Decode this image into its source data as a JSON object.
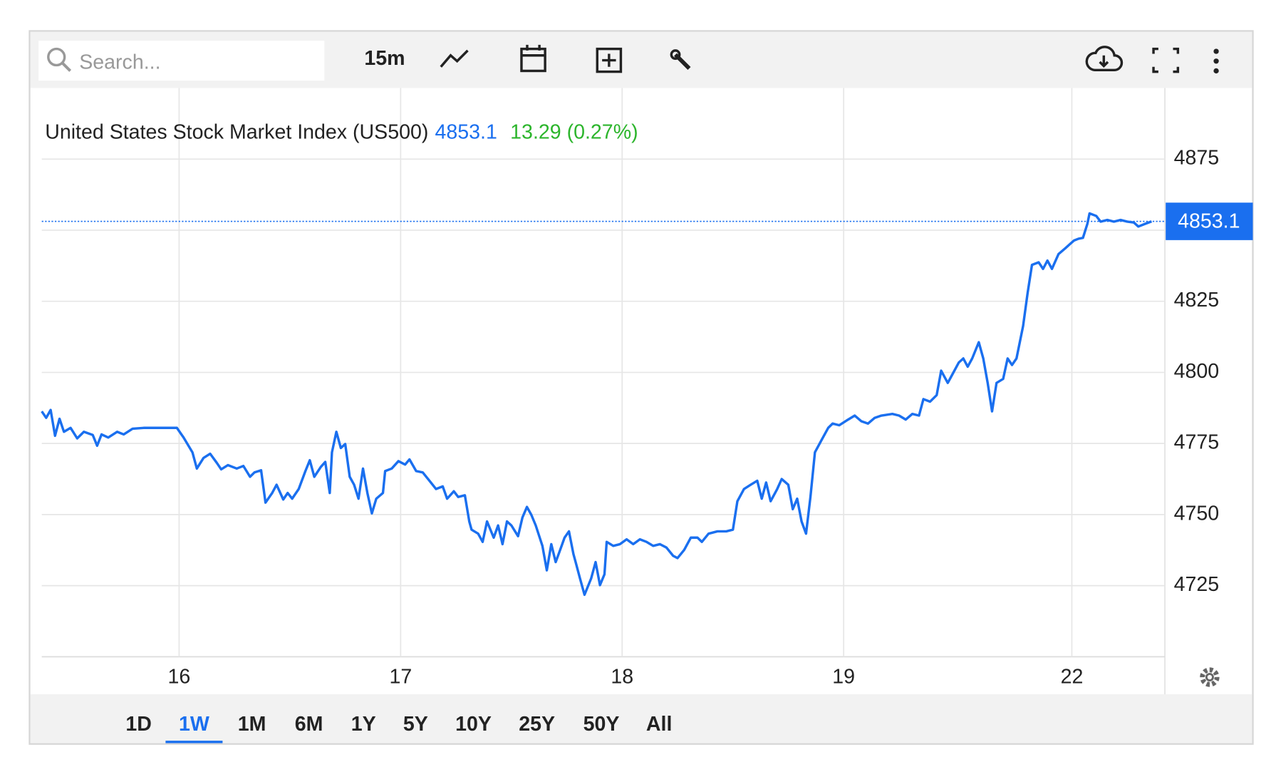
{
  "toolbar": {
    "search_placeholder": "Search...",
    "interval": "15m"
  },
  "chart_data": {
    "type": "line",
    "title": "United States Stock Market Index (US500)",
    "last_price": 4853.1,
    "change_label": "13.29 (0.27%)",
    "color": "#1a6fef",
    "x": [
      -0.62,
      -0.6,
      -0.58,
      -0.56,
      -0.54,
      -0.52,
      -0.49,
      -0.46,
      -0.43,
      -0.39,
      -0.37,
      -0.35,
      -0.32,
      -0.28,
      -0.25,
      -0.21,
      -0.16,
      -0.07,
      -0.01,
      0.02,
      0.06,
      0.08,
      0.11,
      0.14,
      0.17,
      0.19,
      0.22,
      0.26,
      0.29,
      0.32,
      0.34,
      0.37,
      0.39,
      0.42,
      0.44,
      0.47,
      0.49,
      0.51,
      0.54,
      0.57,
      0.59,
      0.61,
      0.64,
      0.66,
      0.68,
      0.69,
      0.71,
      0.73,
      0.75,
      0.77,
      0.79,
      0.81,
      0.83,
      0.85,
      0.87,
      0.89,
      0.92,
      0.93,
      0.96,
      0.99,
      1.02,
      1.04,
      1.07,
      1.1,
      1.13,
      1.16,
      1.19,
      1.21,
      1.24,
      1.26,
      1.29,
      1.31,
      1.32,
      1.35,
      1.37,
      1.39,
      1.42,
      1.44,
      1.46,
      1.48,
      1.5,
      1.53,
      1.55,
      1.57,
      1.59,
      1.61,
      1.64,
      1.66,
      1.68,
      1.7,
      1.72,
      1.74,
      1.76,
      1.78,
      1.79,
      1.81,
      1.83,
      1.86,
      1.88,
      1.9,
      1.92,
      1.93,
      1.96,
      1.99,
      2.02,
      2.05,
      2.08,
      2.11,
      2.14,
      2.17,
      2.2,
      2.23,
      2.25,
      2.28,
      2.31,
      2.34,
      2.36,
      2.39,
      2.43,
      2.47,
      2.5,
      2.52,
      2.55,
      2.58,
      2.61,
      2.63,
      2.65,
      2.67,
      2.7,
      2.72,
      2.75,
      2.77,
      2.79,
      2.81,
      2.83,
      2.85,
      2.87,
      2.9,
      2.93,
      2.95,
      2.98,
      3.02,
      3.05,
      3.08,
      3.11,
      3.14,
      3.17,
      3.22,
      3.25,
      3.28,
      3.31,
      3.34,
      3.36,
      3.39,
      3.42,
      3.44,
      3.47,
      3.49,
      3.52,
      3.54,
      3.56,
      3.58,
      3.61,
      3.63,
      3.65,
      3.67,
      3.69,
      3.72,
      3.74,
      3.76,
      3.78,
      3.81,
      3.83,
      3.85,
      3.88,
      3.9,
      3.92,
      3.94,
      3.97,
      4.0,
      4.02,
      4.04,
      4.06,
      4.08,
      4.1,
      4.11,
      4.14,
      4.16,
      4.19,
      4.22,
      4.25,
      4.28,
      4.31,
      4.33,
      4.36,
      4.39
    ],
    "values": [
      4786.3,
      4784.0,
      4786.8,
      4777.7,
      4783.7,
      4779.1,
      4780.5,
      4776.8,
      4779.1,
      4778.0,
      4774.2,
      4778.2,
      4777.1,
      4779.1,
      4778.2,
      4780.2,
      4780.5,
      4780.5,
      4780.5,
      4777.1,
      4771.9,
      4766.2,
      4769.9,
      4771.4,
      4768.2,
      4765.9,
      4767.4,
      4766.2,
      4767.1,
      4763.3,
      4764.8,
      4765.6,
      4754.2,
      4757.6,
      4760.5,
      4755.3,
      4757.6,
      4755.6,
      4759.0,
      4765.3,
      4769.1,
      4763.3,
      4766.8,
      4768.5,
      4757.6,
      4771.9,
      4779.1,
      4773.4,
      4774.8,
      4763.3,
      4760.5,
      4755.6,
      4766.2,
      4757.6,
      4750.4,
      4755.6,
      4757.6,
      4765.3,
      4766.2,
      4768.8,
      4767.6,
      4769.4,
      4765.3,
      4764.8,
      4761.9,
      4759.0,
      4759.9,
      4755.6,
      4758.2,
      4756.2,
      4756.8,
      4747.6,
      4744.7,
      4743.3,
      4740.4,
      4747.6,
      4741.9,
      4746.2,
      4739.6,
      4747.6,
      4746.2,
      4742.4,
      4749.0,
      4752.7,
      4749.9,
      4746.2,
      4739.0,
      4730.4,
      4739.6,
      4733.3,
      4737.6,
      4741.9,
      4744.1,
      4736.1,
      4733.3,
      4727.5,
      4721.8,
      4727.5,
      4733.3,
      4725.2,
      4729.0,
      4740.4,
      4739.0,
      4739.6,
      4741.3,
      4739.6,
      4741.3,
      4740.4,
      4739.0,
      4739.6,
      4738.4,
      4735.5,
      4734.7,
      4737.6,
      4741.9,
      4741.9,
      4740.4,
      4743.3,
      4744.1,
      4744.1,
      4744.7,
      4754.7,
      4759.0,
      4760.5,
      4761.9,
      4755.6,
      4761.3,
      4754.7,
      4759.0,
      4762.5,
      4760.5,
      4751.9,
      4755.6,
      4747.6,
      4743.3,
      4756.2,
      4771.9,
      4776.2,
      4780.5,
      4782.0,
      4781.4,
      4783.4,
      4784.8,
      4782.8,
      4782.0,
      4784.0,
      4784.8,
      4785.4,
      4784.8,
      4783.4,
      4785.4,
      4784.8,
      4790.6,
      4789.7,
      4792.0,
      4800.6,
      4796.3,
      4799.2,
      4803.5,
      4804.9,
      4802.0,
      4804.9,
      4810.6,
      4804.9,
      4796.3,
      4786.3,
      4796.3,
      4797.7,
      4804.9,
      4802.6,
      4804.9,
      4816.3,
      4827.8,
      4837.8,
      4838.7,
      4836.4,
      4839.3,
      4836.4,
      4841.6,
      4843.6,
      4845.0,
      4846.4,
      4847.0,
      4847.3,
      4852.2,
      4855.9,
      4855.0,
      4853.0,
      4853.6,
      4853.0,
      4853.6,
      4853.0,
      4852.7,
      4851.3,
      4852.2,
      4853.1
    ],
    "xlim": [
      -0.62,
      4.45
    ],
    "xticks": [
      {
        "value": 0,
        "label": "16"
      },
      {
        "value": 1,
        "label": "17"
      },
      {
        "value": 2,
        "label": "18"
      },
      {
        "value": 3,
        "label": "19"
      },
      {
        "value": 4.03,
        "label": "22"
      }
    ],
    "ylim": [
      4700,
      4900
    ],
    "yticks": [
      4725,
      4750,
      4775,
      4800,
      4825,
      4850,
      4875
    ],
    "grid": true
  },
  "ranges": [
    "1D",
    "1W",
    "1M",
    "6M",
    "1Y",
    "5Y",
    "10Y",
    "25Y",
    "50Y",
    "All"
  ],
  "active_range_index": 1
}
